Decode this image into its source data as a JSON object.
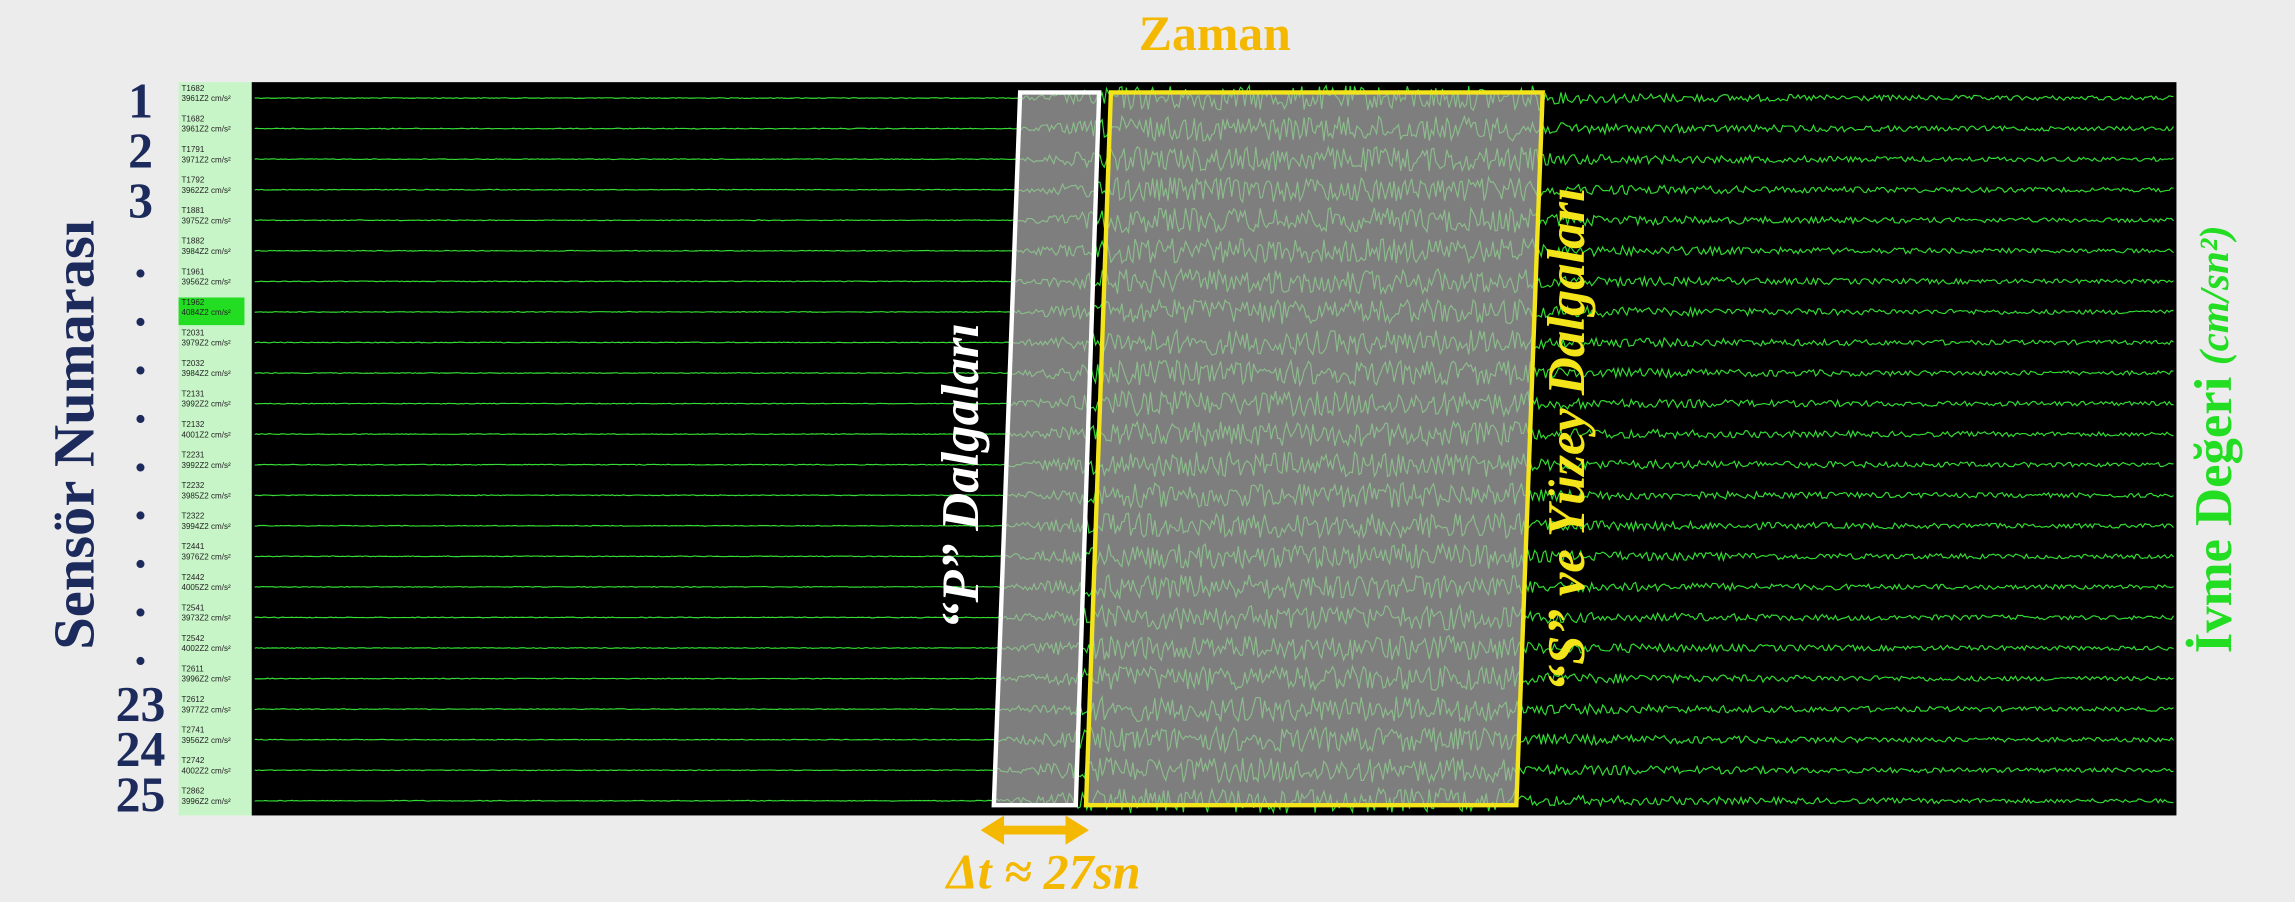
{
  "title": "Zaman",
  "y_axis_label": "Sensör Numarası",
  "sensor_numbers": [
    "1",
    "2",
    "3",
    ".",
    ".",
    ".",
    ".",
    ".",
    ".",
    ".",
    ".",
    ".",
    "23",
    "24",
    "25"
  ],
  "channels": [
    {
      "id": "T1682",
      "reading": "3961Z2 cm/s²"
    },
    {
      "id": "T1682",
      "reading": "3961Z2 cm/s²"
    },
    {
      "id": "T1791",
      "reading": "3971Z2 cm/s²"
    },
    {
      "id": "T1792",
      "reading": "3962Z2 cm/s²"
    },
    {
      "id": "T1881",
      "reading": "3975Z2 cm/s²"
    },
    {
      "id": "T1882",
      "reading": "3984Z2 cm/s²"
    },
    {
      "id": "T1961",
      "reading": "3956Z2 cm/s²"
    },
    {
      "id": "T1962",
      "reading": "4084Z2 cm/s²",
      "selected": true
    },
    {
      "id": "T2031",
      "reading": "3979Z2 cm/s²"
    },
    {
      "id": "T2032",
      "reading": "3984Z2 cm/s²"
    },
    {
      "id": "T2131",
      "reading": "3992Z2 cm/s²"
    },
    {
      "id": "T2132",
      "reading": "4001Z2 cm/s²"
    },
    {
      "id": "T2231",
      "reading": "3992Z2 cm/s²"
    },
    {
      "id": "T2232",
      "reading": "3985Z2 cm/s²"
    },
    {
      "id": "T2322",
      "reading": "3994Z2 cm/s²"
    },
    {
      "id": "T2441",
      "reading": "3976Z2 cm/s²"
    },
    {
      "id": "T2442",
      "reading": "4005Z2 cm/s²"
    },
    {
      "id": "T2541",
      "reading": "3973Z2 cm/s²"
    },
    {
      "id": "T2542",
      "reading": "4002Z2 cm/s²"
    },
    {
      "id": "T2611",
      "reading": "3996Z2 cm/s²"
    },
    {
      "id": "T2612",
      "reading": "3977Z2 cm/s²"
    },
    {
      "id": "T2741",
      "reading": "3956Z2 cm/s²"
    },
    {
      "id": "T2742",
      "reading": "4002Z2 cm/s²"
    },
    {
      "id": "T2862",
      "reading": "3996Z2 cm/s²"
    }
  ],
  "p_wave_label": "“P” Dalgaları",
  "s_wave_label": "“S” ve Yüzey Dalgaları",
  "right_axis_label": "İvme Değeri",
  "right_axis_unit": "(cm/sn²)",
  "delta_label": "Δt ≈ 27sn"
}
